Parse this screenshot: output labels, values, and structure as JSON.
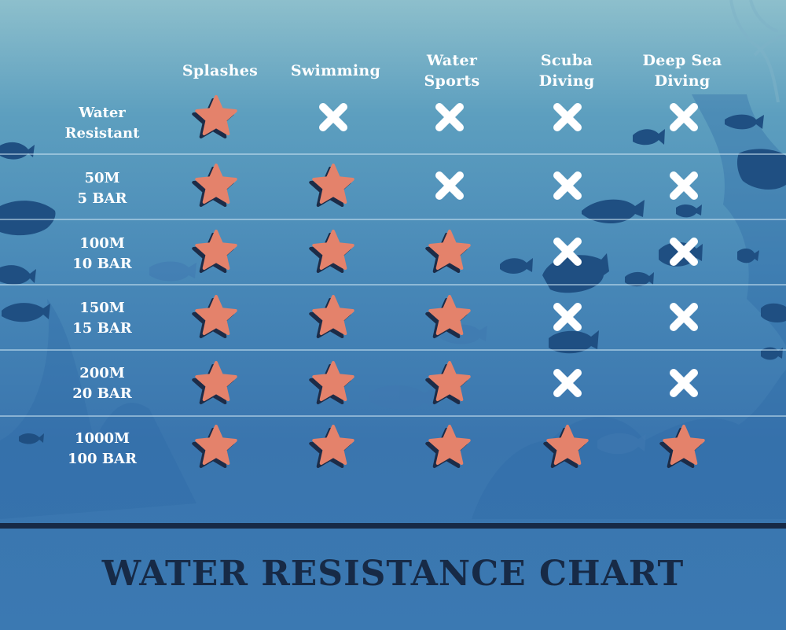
{
  "title": "WATER RESISTANCE CHART",
  "chart_data": {
    "type": "table",
    "columns": [
      "Splashes",
      "Swimming",
      "Water\nSports",
      "Scuba\nDiving",
      "Deep Sea\nDiving"
    ],
    "rows": [
      {
        "label": "Water\nResistant",
        "values": [
          "star",
          "x",
          "x",
          "x",
          "x"
        ]
      },
      {
        "label": "50M\n5 BAR",
        "values": [
          "star",
          "star",
          "x",
          "x",
          "x"
        ]
      },
      {
        "label": "100M\n10 BAR",
        "values": [
          "star",
          "star",
          "star",
          "x",
          "x"
        ]
      },
      {
        "label": "150M\n15 BAR",
        "values": [
          "star",
          "star",
          "star",
          "x",
          "x"
        ]
      },
      {
        "label": "200M\n20 BAR",
        "values": [
          "star",
          "star",
          "star",
          "x",
          "x"
        ]
      },
      {
        "label": "1000M\n100 BAR",
        "values": [
          "star",
          "star",
          "star",
          "star",
          "star"
        ]
      }
    ],
    "mark_icons": {
      "star": "starfish-icon",
      "x": "cross-icon"
    }
  },
  "colors": {
    "star": "#e4826b",
    "star_shadow": "#1c2c48",
    "cross": "#ffffff",
    "title": "#172a46",
    "silhouette": "#1f4f82"
  }
}
